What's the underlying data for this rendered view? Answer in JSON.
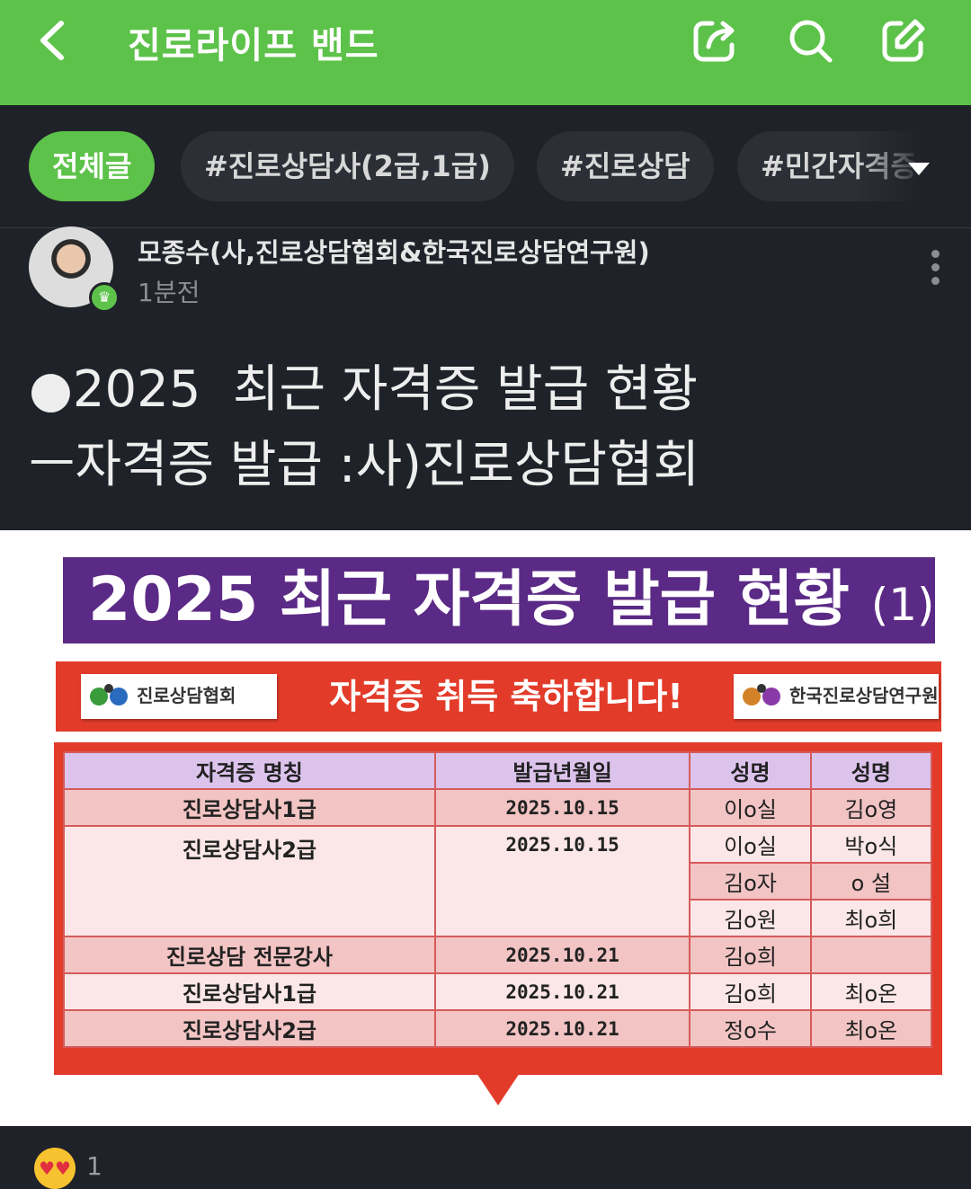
{
  "header": {
    "title": "진로라이프 밴드",
    "back_icon": "chevron-left-icon",
    "share_icon": "share-icon",
    "search_icon": "search-icon",
    "write_icon": "edit-icon",
    "color": "#5dc24a"
  },
  "chips": [
    {
      "label": "전체글",
      "active": true
    },
    {
      "label": "#진로상담사(2급,1급)"
    },
    {
      "label": "#진로상담"
    },
    {
      "label": "#민간자격증"
    }
  ],
  "post": {
    "author": "모종수(사,진로상담협회&한국진로상담연구원)",
    "time": "1분전",
    "title_line1": "●2025  최근 자격증 발급 현황",
    "title_line2": "ㅡ자격증 발급 :사)진로상담협회"
  },
  "image": {
    "banner_title": "2025 최근 자격증 발급 현황",
    "banner_suffix": "(1)",
    "logo_left": "진로상담협회",
    "logo_right": "한국진로상담연구원",
    "congrats": "자격증 취득 축하합니다!",
    "table": {
      "headers": [
        "자격증 명칭",
        "발급년월일",
        "성명",
        "성명"
      ],
      "rows": [
        [
          "진로상담사1급",
          "2025.10.15",
          "이o실",
          "김o영"
        ],
        [
          "진로상담사2급",
          "2025.10.15",
          "이o실",
          "박o식"
        ],
        [
          "",
          "",
          "김o자",
          "o 설"
        ],
        [
          "",
          "",
          "김o원",
          "최o희"
        ],
        [
          "진로상담 전문강사",
          "2025.10.21",
          "김o희",
          ""
        ],
        [
          "진로상담사1급",
          "2025.10.21",
          "김o희",
          "최o온"
        ],
        [
          "진로상담사2급",
          "2025.10.21",
          "정o수",
          "최o온"
        ]
      ]
    }
  },
  "reactions": {
    "emoji": "heart-eyes-emoji",
    "count": "1"
  }
}
